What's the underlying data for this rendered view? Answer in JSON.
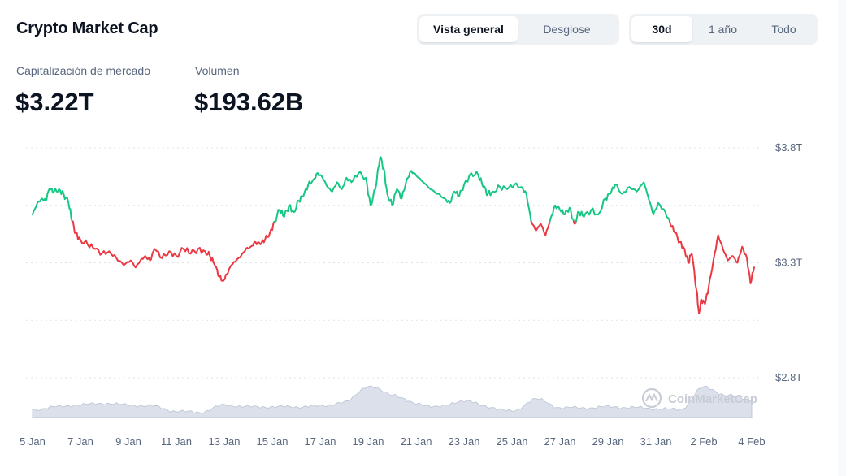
{
  "header": {
    "title": "Crypto Market Cap",
    "view_tabs": [
      {
        "label": "Vista general",
        "active": true
      },
      {
        "label": "Desglose",
        "active": false
      }
    ],
    "range_tabs": [
      {
        "label": "30d",
        "active": true
      },
      {
        "label": "1 año",
        "active": false
      },
      {
        "label": "Todo",
        "active": false
      }
    ]
  },
  "stats": {
    "market_cap_label": "Capitalización de mercado",
    "market_cap_value": "$3.22T",
    "volume_label": "Volumen",
    "volume_value": "$193.62B"
  },
  "watermark": "CoinMarketCap",
  "colors": {
    "up": "#16c784",
    "down": "#ea3943",
    "volume": "#cfd6e4",
    "grid": "#dfe3ea"
  },
  "chart_data": {
    "type": "line",
    "baseline": 3.48,
    "y_ticks": [
      {
        "value": 3.8,
        "label": "$3.8T"
      },
      {
        "value": 3.3,
        "label": "$3.3T"
      },
      {
        "value": 2.8,
        "label": "$2.8T"
      }
    ],
    "ylim": [
      2.63,
      3.83
    ],
    "x_ticks": [
      {
        "day": 0,
        "label": "5 Jan"
      },
      {
        "day": 2,
        "label": "7 Jan"
      },
      {
        "day": 4,
        "label": "9 Jan"
      },
      {
        "day": 6,
        "label": "11 Jan"
      },
      {
        "day": 8,
        "label": "13 Jan"
      },
      {
        "day": 10,
        "label": "15 Jan"
      },
      {
        "day": 12,
        "label": "17 Jan"
      },
      {
        "day": 14,
        "label": "19 Jan"
      },
      {
        "day": 16,
        "label": "21 Jan"
      },
      {
        "day": 18,
        "label": "23 Jan"
      },
      {
        "day": 20,
        "label": "25 Jan"
      },
      {
        "day": 22,
        "label": "27 Jan"
      },
      {
        "day": 24,
        "label": "29 Jan"
      },
      {
        "day": 26,
        "label": "31 Jan"
      },
      {
        "day": 28,
        "label": "2 Feb"
      },
      {
        "day": 30,
        "label": "4 Feb"
      }
    ],
    "series": [
      {
        "values": [
          [
            0.0,
            3.51
          ],
          [
            0.2,
            3.56
          ],
          [
            0.4,
            3.58
          ],
          [
            0.55,
            3.57
          ],
          [
            0.7,
            3.62
          ],
          [
            0.9,
            3.61
          ],
          [
            1.1,
            3.62
          ],
          [
            1.3,
            3.6
          ],
          [
            1.5,
            3.56
          ],
          [
            1.65,
            3.48
          ],
          [
            1.8,
            3.43
          ],
          [
            2.0,
            3.4
          ],
          [
            2.3,
            3.38
          ],
          [
            2.6,
            3.36
          ],
          [
            2.9,
            3.34
          ],
          [
            3.2,
            3.35
          ],
          [
            3.5,
            3.32
          ],
          [
            3.8,
            3.29
          ],
          [
            4.1,
            3.31
          ],
          [
            4.3,
            3.28
          ],
          [
            4.5,
            3.31
          ],
          [
            4.7,
            3.33
          ],
          [
            4.9,
            3.31
          ],
          [
            5.1,
            3.36
          ],
          [
            5.4,
            3.32
          ],
          [
            5.7,
            3.35
          ],
          [
            6.0,
            3.33
          ],
          [
            6.3,
            3.36
          ],
          [
            6.6,
            3.34
          ],
          [
            6.9,
            3.36
          ],
          [
            7.2,
            3.35
          ],
          [
            7.4,
            3.33
          ],
          [
            7.6,
            3.29
          ],
          [
            7.8,
            3.24
          ],
          [
            7.95,
            3.22
          ],
          [
            8.1,
            3.25
          ],
          [
            8.3,
            3.29
          ],
          [
            8.5,
            3.31
          ],
          [
            8.7,
            3.33
          ],
          [
            8.9,
            3.36
          ],
          [
            9.1,
            3.37
          ],
          [
            9.3,
            3.39
          ],
          [
            9.5,
            3.38
          ],
          [
            9.7,
            3.4
          ],
          [
            9.9,
            3.43
          ],
          [
            10.1,
            3.48
          ],
          [
            10.3,
            3.53
          ],
          [
            10.5,
            3.5
          ],
          [
            10.7,
            3.55
          ],
          [
            10.9,
            3.52
          ],
          [
            11.1,
            3.57
          ],
          [
            11.3,
            3.59
          ],
          [
            11.5,
            3.64
          ],
          [
            11.7,
            3.66
          ],
          [
            11.9,
            3.69
          ],
          [
            12.1,
            3.67
          ],
          [
            12.3,
            3.63
          ],
          [
            12.5,
            3.61
          ],
          [
            12.7,
            3.65
          ],
          [
            12.9,
            3.62
          ],
          [
            13.1,
            3.67
          ],
          [
            13.3,
            3.65
          ],
          [
            13.6,
            3.69
          ],
          [
            13.9,
            3.67
          ],
          [
            14.1,
            3.55
          ],
          [
            14.3,
            3.62
          ],
          [
            14.5,
            3.76
          ],
          [
            14.65,
            3.71
          ],
          [
            14.8,
            3.6
          ],
          [
            15.0,
            3.55
          ],
          [
            15.2,
            3.62
          ],
          [
            15.4,
            3.58
          ],
          [
            15.6,
            3.66
          ],
          [
            15.8,
            3.7
          ],
          [
            16.0,
            3.68
          ],
          [
            16.3,
            3.65
          ],
          [
            16.6,
            3.62
          ],
          [
            16.9,
            3.6
          ],
          [
            17.2,
            3.58
          ],
          [
            17.4,
            3.56
          ],
          [
            17.6,
            3.61
          ],
          [
            17.8,
            3.59
          ],
          [
            18.0,
            3.64
          ],
          [
            18.3,
            3.69
          ],
          [
            18.6,
            3.68
          ],
          [
            18.8,
            3.63
          ],
          [
            19.0,
            3.6
          ],
          [
            19.2,
            3.61
          ],
          [
            19.5,
            3.63
          ],
          [
            19.8,
            3.62
          ],
          [
            20.1,
            3.64
          ],
          [
            20.4,
            3.63
          ],
          [
            20.6,
            3.6
          ],
          [
            20.8,
            3.48
          ],
          [
            21.0,
            3.44
          ],
          [
            21.2,
            3.47
          ],
          [
            21.4,
            3.42
          ],
          [
            21.6,
            3.49
          ],
          [
            21.8,
            3.55
          ],
          [
            22.0,
            3.53
          ],
          [
            22.2,
            3.51
          ],
          [
            22.4,
            3.54
          ],
          [
            22.6,
            3.47
          ],
          [
            22.8,
            3.52
          ],
          [
            23.0,
            3.5
          ],
          [
            23.3,
            3.53
          ],
          [
            23.6,
            3.51
          ],
          [
            23.9,
            3.58
          ],
          [
            24.1,
            3.6
          ],
          [
            24.3,
            3.64
          ],
          [
            24.6,
            3.6
          ],
          [
            24.9,
            3.63
          ],
          [
            25.2,
            3.61
          ],
          [
            25.5,
            3.65
          ],
          [
            25.7,
            3.58
          ],
          [
            25.9,
            3.51
          ],
          [
            26.1,
            3.56
          ],
          [
            26.4,
            3.52
          ],
          [
            26.6,
            3.47
          ],
          [
            26.8,
            3.43
          ],
          [
            27.0,
            3.39
          ],
          [
            27.2,
            3.36
          ],
          [
            27.35,
            3.3
          ],
          [
            27.5,
            3.34
          ],
          [
            27.7,
            3.18
          ],
          [
            27.8,
            3.08
          ],
          [
            27.9,
            3.14
          ],
          [
            28.05,
            3.12
          ],
          [
            28.2,
            3.19
          ],
          [
            28.4,
            3.31
          ],
          [
            28.6,
            3.42
          ],
          [
            28.8,
            3.36
          ],
          [
            29.0,
            3.31
          ],
          [
            29.2,
            3.33
          ],
          [
            29.4,
            3.3
          ],
          [
            29.6,
            3.37
          ],
          [
            29.8,
            3.32
          ],
          [
            29.95,
            3.21
          ],
          [
            30.1,
            3.28
          ]
        ]
      }
    ],
    "volume": {
      "ylim": [
        0,
        1
      ],
      "values": [
        [
          0,
          0.22
        ],
        [
          1,
          0.3
        ],
        [
          2,
          0.36
        ],
        [
          3,
          0.4
        ],
        [
          4,
          0.35
        ],
        [
          5,
          0.32
        ],
        [
          6,
          0.17
        ],
        [
          7,
          0.15
        ],
        [
          8,
          0.35
        ],
        [
          9,
          0.3
        ],
        [
          10,
          0.3
        ],
        [
          11,
          0.3
        ],
        [
          12,
          0.32
        ],
        [
          13,
          0.42
        ],
        [
          14,
          0.88
        ],
        [
          15,
          0.65
        ],
        [
          16,
          0.38
        ],
        [
          17,
          0.3
        ],
        [
          18,
          0.48
        ],
        [
          19,
          0.3
        ],
        [
          20,
          0.17
        ],
        [
          21,
          0.52
        ],
        [
          22,
          0.28
        ],
        [
          23,
          0.27
        ],
        [
          24,
          0.3
        ],
        [
          25,
          0.28
        ],
        [
          26,
          0.25
        ],
        [
          27,
          0.22
        ],
        [
          28,
          0.85
        ],
        [
          29,
          0.62
        ],
        [
          30,
          0.5
        ]
      ]
    }
  }
}
